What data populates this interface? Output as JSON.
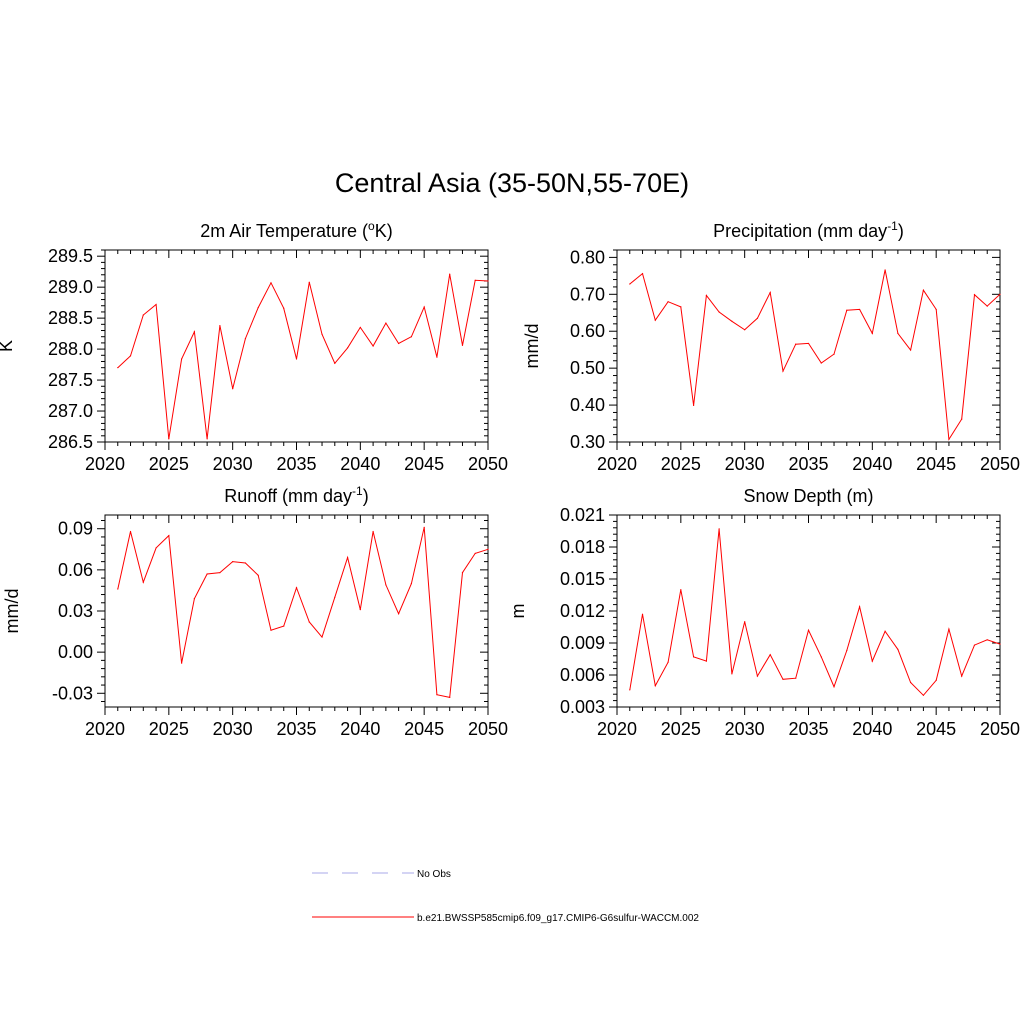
{
  "page": {
    "title": "Central Asia (35-50N,55-70E)"
  },
  "colors": {
    "model_line": "#ff0000",
    "obs_line": "#a8a8e8",
    "axes": "#000000"
  },
  "legend": {
    "entries": [
      {
        "label": "No Obs",
        "style": "dashed",
        "color": "#a8a8e8"
      },
      {
        "label": "b.e21.BWSSP585cmip6.f09_g17.CMIP6-G6sulfur-WACCM.002",
        "style": "solid",
        "color": "#ff0000"
      }
    ]
  },
  "chart_data": [
    {
      "type": "line",
      "title": "2m Air Temperature (",
      "title_sup": "o",
      "title_after": "K)",
      "xlabel": "",
      "ylabel": "K",
      "xlim": [
        2020,
        2050
      ],
      "ylim": [
        286.5,
        289.6
      ],
      "xticks": [
        2020,
        2025,
        2030,
        2035,
        2040,
        2045,
        2050
      ],
      "xticklabels": [
        "2020",
        "2025",
        "2030",
        "2035",
        "2040",
        "2045",
        "2050"
      ],
      "yticks": [
        286.5,
        287.0,
        287.5,
        288.0,
        288.5,
        289.0,
        289.5
      ],
      "yticklabels": [
        "286.5",
        "287.0",
        "287.5",
        "288.0",
        "288.5",
        "289.0",
        "289.5"
      ],
      "x": [
        2021,
        2022,
        2023,
        2024,
        2025,
        2026,
        2027,
        2028,
        2029,
        2030,
        2031,
        2032,
        2033,
        2034,
        2035,
        2036,
        2037,
        2038,
        2039,
        2040,
        2041,
        2042,
        2043,
        2044,
        2045,
        2046,
        2047,
        2048,
        2049,
        2050
      ],
      "series": [
        {
          "values": [
            287.7,
            287.89,
            288.55,
            288.72,
            286.55,
            287.84,
            288.28,
            286.55,
            288.38,
            287.36,
            288.17,
            288.67,
            289.07,
            288.66,
            287.84,
            289.08,
            288.24,
            287.77,
            288.02,
            288.35,
            288.05,
            288.42,
            288.09,
            288.2,
            288.68,
            287.87,
            289.21,
            288.06,
            289.11,
            289.1
          ]
        }
      ]
    },
    {
      "type": "line",
      "title": "Precipitation (mm day",
      "title_sup": "-1",
      "title_after": ")",
      "xlabel": "",
      "ylabel": "mm/d",
      "xlim": [
        2020,
        2050
      ],
      "ylim": [
        0.3,
        0.82
      ],
      "xticks": [
        2020,
        2025,
        2030,
        2035,
        2040,
        2045,
        2050
      ],
      "xticklabels": [
        "2020",
        "2025",
        "2030",
        "2035",
        "2040",
        "2045",
        "2050"
      ],
      "yticks": [
        0.3,
        0.4,
        0.5,
        0.6,
        0.7,
        0.8
      ],
      "yticklabels": [
        "0.30",
        "0.40",
        "0.50",
        "0.60",
        "0.70",
        "0.80"
      ],
      "x": [
        2021,
        2022,
        2023,
        2024,
        2025,
        2026,
        2027,
        2028,
        2029,
        2030,
        2031,
        2032,
        2033,
        2034,
        2035,
        2036,
        2037,
        2038,
        2039,
        2040,
        2041,
        2042,
        2043,
        2044,
        2045,
        2046,
        2047,
        2048,
        2049,
        2050
      ],
      "series": [
        {
          "values": [
            0.728,
            0.756,
            0.63,
            0.68,
            0.666,
            0.399,
            0.697,
            0.652,
            0.627,
            0.604,
            0.635,
            0.705,
            0.492,
            0.565,
            0.567,
            0.514,
            0.538,
            0.657,
            0.659,
            0.594,
            0.766,
            0.594,
            0.549,
            0.711,
            0.659,
            0.307,
            0.362,
            0.699,
            0.668,
            0.7
          ]
        }
      ]
    },
    {
      "type": "line",
      "title": "Runoff (mm day",
      "title_sup": "-1",
      "title_after": ")",
      "xlabel": "",
      "ylabel": "mm/d",
      "xlim": [
        2020,
        2050
      ],
      "ylim": [
        -0.04,
        0.1
      ],
      "xticks": [
        2020,
        2025,
        2030,
        2035,
        2040,
        2045,
        2050
      ],
      "xticklabels": [
        "2020",
        "2025",
        "2030",
        "2035",
        "2040",
        "2045",
        "2050"
      ],
      "yticks": [
        -0.03,
        0.0,
        0.03,
        0.06,
        0.09
      ],
      "yticklabels": [
        "-0.03",
        "0.00",
        "0.03",
        "0.06",
        "0.09"
      ],
      "x": [
        2021,
        2022,
        2023,
        2024,
        2025,
        2026,
        2027,
        2028,
        2029,
        2030,
        2031,
        2032,
        2033,
        2034,
        2035,
        2036,
        2037,
        2038,
        2039,
        2040,
        2041,
        2042,
        2043,
        2044,
        2045,
        2046,
        2047,
        2048,
        2049,
        2050
      ],
      "series": [
        {
          "values": [
            0.046,
            0.088,
            0.051,
            0.076,
            0.085,
            -0.008,
            0.039,
            0.057,
            0.058,
            0.066,
            0.065,
            0.056,
            0.016,
            0.019,
            0.047,
            0.022,
            0.011,
            0.04,
            0.069,
            0.031,
            0.088,
            0.049,
            0.028,
            0.05,
            0.091,
            -0.031,
            -0.033,
            0.058,
            0.072,
            0.075
          ]
        }
      ]
    },
    {
      "type": "line",
      "title": "Snow Depth (m)",
      "title_sup": "",
      "title_after": "",
      "xlabel": "",
      "ylabel": "m",
      "xlim": [
        2020,
        2050
      ],
      "ylim": [
        0.003,
        0.021
      ],
      "xticks": [
        2020,
        2025,
        2030,
        2035,
        2040,
        2045,
        2050
      ],
      "xticklabels": [
        "2020",
        "2025",
        "2030",
        "2035",
        "2040",
        "2045",
        "2050"
      ],
      "yticks": [
        0.003,
        0.006,
        0.009,
        0.012,
        0.015,
        0.018,
        0.021
      ],
      "yticklabels": [
        "0.003",
        "0.006",
        "0.009",
        "0.012",
        "0.015",
        "0.018",
        "0.021"
      ],
      "x": [
        2021,
        2022,
        2023,
        2024,
        2025,
        2026,
        2027,
        2028,
        2029,
        2030,
        2031,
        2032,
        2033,
        2034,
        2035,
        2036,
        2037,
        2038,
        2039,
        2040,
        2041,
        2042,
        2043,
        2044,
        2045,
        2046,
        2047,
        2048,
        2049,
        2050
      ],
      "series": [
        {
          "values": [
            0.0046,
            0.0117,
            0.005,
            0.0072,
            0.014,
            0.0077,
            0.0073,
            0.0197,
            0.0061,
            0.011,
            0.0059,
            0.0079,
            0.0056,
            0.0057,
            0.0102,
            0.0077,
            0.0049,
            0.0083,
            0.0124,
            0.0073,
            0.0101,
            0.0084,
            0.0053,
            0.0041,
            0.0055,
            0.0103,
            0.0059,
            0.0088,
            0.0093,
            0.0089
          ]
        }
      ]
    }
  ]
}
